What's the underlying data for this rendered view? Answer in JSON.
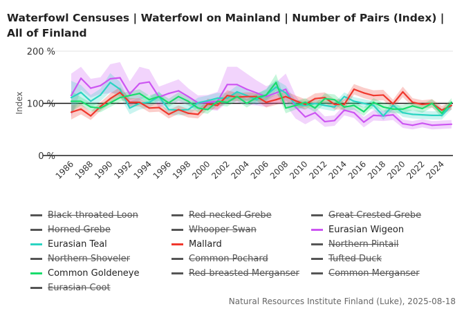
{
  "title": "Waterfowl Censuses | Waterfowl on Mainland | Number of Pairs (Index) | All of Finland",
  "footer": "Natural Resources Institute Finland (Luke), 2025-08-18",
  "chart_data": {
    "type": "line",
    "title": "Waterfowl Censuses | Waterfowl on Mainland | Number of Pairs (Index) | All of Finland",
    "xlabel": "",
    "ylabel": "Index",
    "ylim": [
      0,
      200
    ],
    "yticks": [
      "0 %",
      "100 %",
      "200 %"
    ],
    "ytick_values": [
      0,
      100,
      200
    ],
    "reference_line": 100,
    "grid": true,
    "legend_position": "bottom",
    "x": [
      1986,
      1987,
      1988,
      1989,
      1990,
      1991,
      1992,
      1993,
      1994,
      1995,
      1996,
      1997,
      1998,
      1999,
      2000,
      2001,
      2002,
      2003,
      2004,
      2005,
      2006,
      2007,
      2008,
      2009,
      2010,
      2011,
      2012,
      2013,
      2014,
      2015,
      2016,
      2017,
      2018,
      2019,
      2020,
      2021,
      2022,
      2023,
      2024,
      2025
    ],
    "xticks": [
      "1986",
      "1988",
      "1990",
      "1992",
      "1994",
      "1996",
      "1998",
      "2000",
      "2002",
      "2004",
      "2006",
      "2008",
      "2010",
      "2012",
      "2014",
      "2016",
      "2018",
      "2020",
      "2022",
      "2024"
    ],
    "series": [
      {
        "name": "Eurasian Wigeon",
        "color": "#cc55f2",
        "visible": true,
        "values": [
          115,
          148,
          129,
          134,
          147,
          149,
          118,
          138,
          141,
          112,
          119,
          124,
          113,
          101,
          102,
          104,
          136,
          136,
          127,
          120,
          113,
          120,
          127,
          93,
          74,
          82,
          65,
          67,
          87,
          82,
          64,
          77,
          76,
          78,
          61,
          58,
          62,
          58,
          59,
          60
        ],
        "ci": [
          42,
          22,
          18,
          16,
          28,
          30,
          24,
          32,
          24,
          20,
          20,
          22,
          16,
          14,
          14,
          18,
          34,
          34,
          30,
          24,
          20,
          20,
          30,
          22,
          14,
          12,
          10,
          10,
          10,
          10,
          10,
          10,
          10,
          10,
          8,
          8,
          8,
          8,
          8,
          8
        ]
      },
      {
        "name": "Eurasian Teal",
        "color": "#2ad4c2",
        "visible": true,
        "values": [
          111,
          121,
          104,
          116,
          140,
          127,
          91,
          100,
          102,
          113,
          88,
          87,
          88,
          101,
          105,
          110,
          110,
          122,
          115,
          107,
          116,
          131,
          120,
          98,
          96,
          100,
          96,
          93,
          113,
          104,
          100,
          96,
          76,
          96,
          82,
          79,
          78,
          77,
          77,
          96
        ],
        "ci": [
          32,
          14,
          12,
          12,
          18,
          14,
          12,
          12,
          10,
          10,
          10,
          10,
          10,
          10,
          10,
          10,
          10,
          12,
          10,
          10,
          12,
          14,
          14,
          8,
          8,
          8,
          8,
          8,
          8,
          8,
          8,
          8,
          8,
          8,
          8,
          8,
          8,
          8,
          8,
          8
        ]
      },
      {
        "name": "Mallard",
        "color": "#f0372c",
        "visible": true,
        "values": [
          83,
          89,
          76,
          94,
          109,
          121,
          102,
          102,
          91,
          92,
          79,
          88,
          81,
          79,
          99,
          96,
          115,
          112,
          113,
          113,
          102,
          107,
          113,
          105,
          98,
          109,
          111,
          98,
          98,
          127,
          120,
          115,
          116,
          99,
          122,
          102,
          98,
          100,
          87,
          96
        ],
        "ci": [
          14,
          10,
          8,
          8,
          10,
          10,
          8,
          8,
          8,
          8,
          8,
          8,
          8,
          8,
          10,
          8,
          10,
          8,
          8,
          8,
          10,
          10,
          10,
          10,
          10,
          10,
          10,
          10,
          10,
          10,
          10,
          10,
          10,
          8,
          10,
          8,
          8,
          8,
          8,
          8
        ]
      },
      {
        "name": "Common Goldeneye",
        "color": "#18dc6c",
        "visible": true,
        "values": [
          104,
          104,
          93,
          91,
          101,
          111,
          115,
          119,
          107,
          113,
          101,
          113,
          104,
          91,
          88,
          104,
          102,
          113,
          100,
          111,
          116,
          140,
          91,
          96,
          102,
          91,
          109,
          107,
          93,
          96,
          84,
          102,
          93,
          89,
          89,
          95,
          90,
          100,
          81,
          102
        ],
        "ci": [
          20,
          8,
          8,
          8,
          8,
          8,
          8,
          8,
          8,
          8,
          8,
          8,
          8,
          8,
          8,
          8,
          8,
          8,
          8,
          8,
          10,
          16,
          10,
          8,
          8,
          8,
          10,
          10,
          8,
          8,
          8,
          8,
          8,
          8,
          8,
          8,
          8,
          8,
          8,
          8
        ]
      }
    ]
  },
  "legend": [
    {
      "label": "Black-throated Loon",
      "color": "#555555",
      "hidden": true
    },
    {
      "label": "Red-necked Grebe",
      "color": "#555555",
      "hidden": true
    },
    {
      "label": "Great Crested Grebe",
      "color": "#555555",
      "hidden": true
    },
    {
      "label": "Horned Grebe",
      "color": "#555555",
      "hidden": true
    },
    {
      "label": "Whooper Swan",
      "color": "#555555",
      "hidden": true
    },
    {
      "label": "Eurasian Wigeon",
      "color": "#cc55f2",
      "hidden": false
    },
    {
      "label": "Eurasian Teal",
      "color": "#2ad4c2",
      "hidden": false
    },
    {
      "label": "Mallard",
      "color": "#f0372c",
      "hidden": false
    },
    {
      "label": "Northern Pintail",
      "color": "#555555",
      "hidden": true
    },
    {
      "label": "Northern Shoveler",
      "color": "#555555",
      "hidden": true
    },
    {
      "label": "Common Pochard",
      "color": "#555555",
      "hidden": true
    },
    {
      "label": "Tufted Duck",
      "color": "#555555",
      "hidden": true
    },
    {
      "label": "Common Goldeneye",
      "color": "#18dc6c",
      "hidden": false
    },
    {
      "label": "Red-breasted Merganser",
      "color": "#555555",
      "hidden": true
    },
    {
      "label": "Common Merganser",
      "color": "#555555",
      "hidden": true
    },
    {
      "label": "Eurasian Coot",
      "color": "#555555",
      "hidden": true
    }
  ]
}
